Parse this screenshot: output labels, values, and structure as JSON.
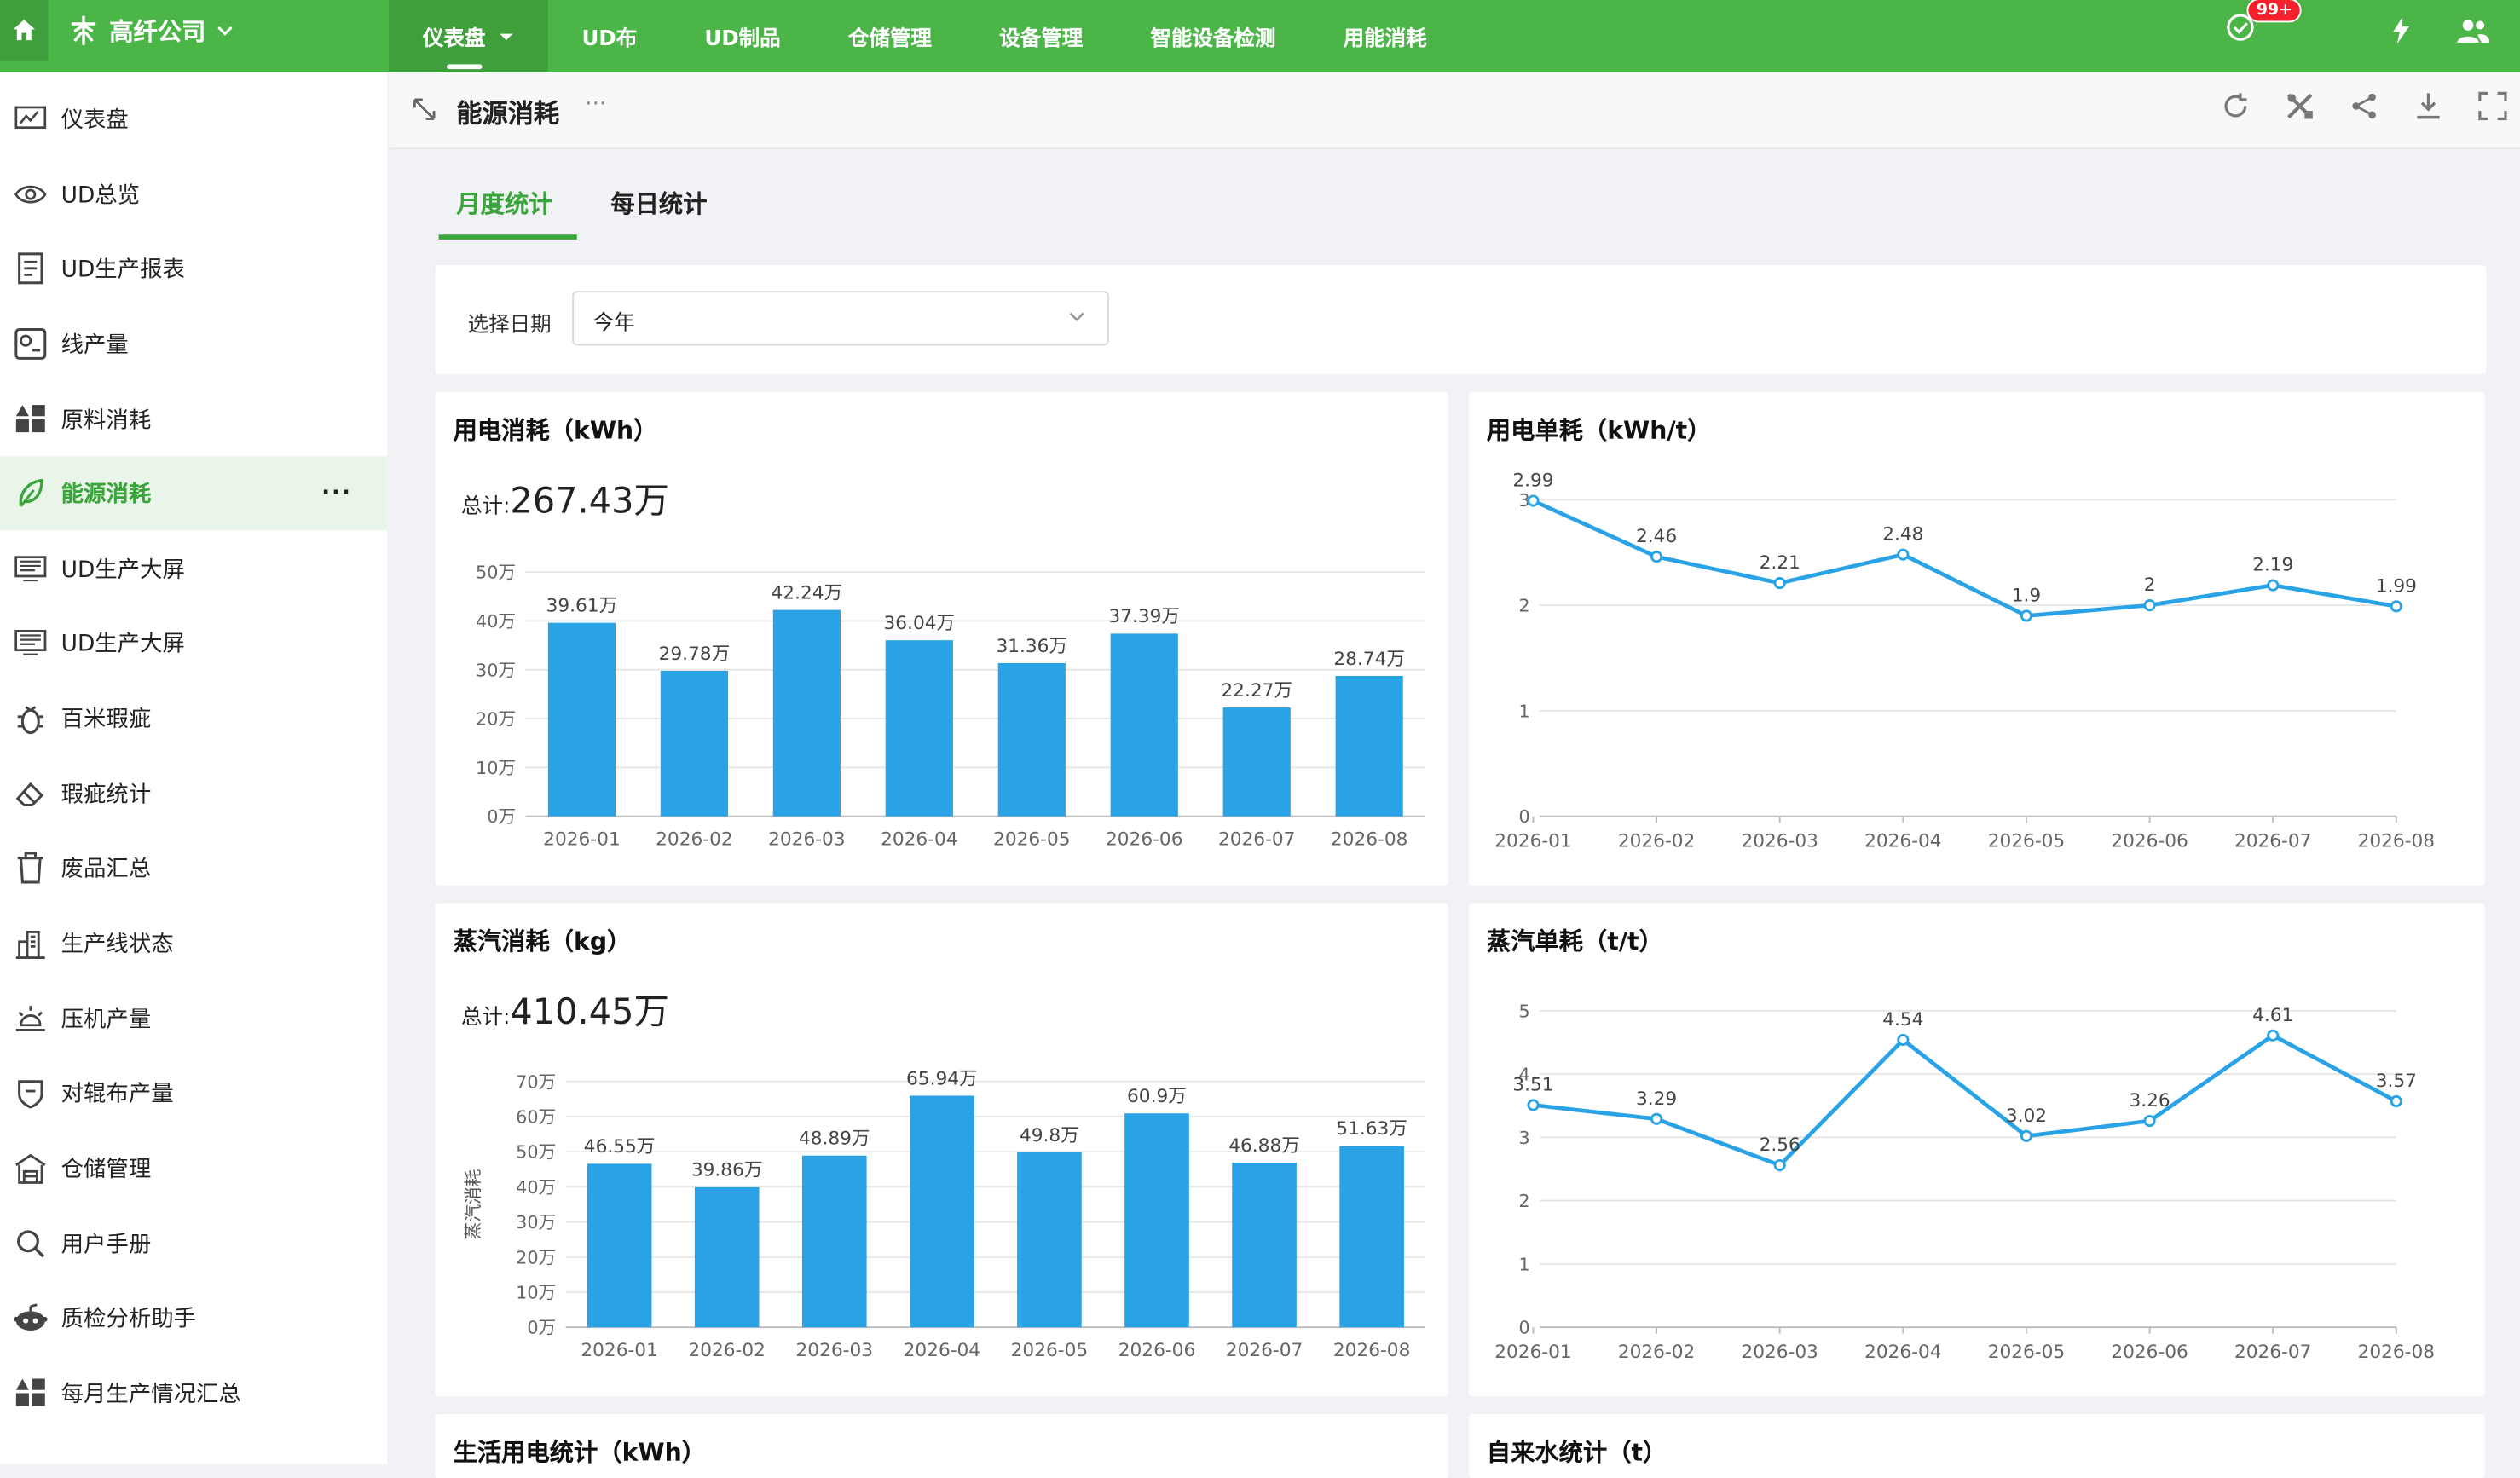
{
  "topbar": {
    "company": "高纤公司",
    "nav": [
      "仪表盘",
      "UD布",
      "UD制品",
      "仓储管理",
      "设备管理",
      "智能设备检测",
      "用能消耗"
    ],
    "badge": "99+"
  },
  "sidebar": {
    "items": [
      "仪表盘",
      "UD总览",
      "UD生产报表",
      "线产量",
      "原料消耗",
      "能源消耗",
      "UD生产大屏",
      "UD生产大屏",
      "百米瑕疵",
      "瑕疵统计",
      "废品汇总",
      "生产线状态",
      "压机产量",
      "对辊布产量",
      "仓储管理",
      "用户手册",
      "质检分析助手",
      "每月生产情况汇总"
    ],
    "active_index": 5,
    "more": "···"
  },
  "page": {
    "title": "能源消耗",
    "dots": "···",
    "tabs": [
      "月度统计",
      "每日统计"
    ],
    "filter_label": "选择日期",
    "filter_value": "今年"
  },
  "cards": {
    "electric": {
      "title": "用电消耗（kWh）",
      "total_label": "总计:",
      "total": "267.43万"
    },
    "electric_unit": {
      "title": "用电单耗（kWh/t）"
    },
    "steam": {
      "title": "蒸汽消耗（kg）",
      "total_label": "总计:",
      "total": "410.45万"
    },
    "steam_unit": {
      "title": "蒸汽单耗（t/t）"
    },
    "life_power": {
      "title": "生活用电统计（kWh）"
    },
    "water": {
      "title": "自来水统计（t）"
    }
  },
  "chart_data": [
    {
      "type": "bar",
      "title": "用电消耗（kWh）",
      "categories": [
        "2026-01",
        "2026-02",
        "2026-03",
        "2026-04",
        "2026-05",
        "2026-06",
        "2026-07",
        "2026-08"
      ],
      "values": [
        39.61,
        29.78,
        42.24,
        36.04,
        31.36,
        37.39,
        22.27,
        28.74
      ],
      "data_labels": [
        "39.61万",
        "29.78万",
        "42.24万",
        "36.04万",
        "31.36万",
        "37.39万",
        "22.27万",
        "28.74万"
      ],
      "yticks": [
        "0万",
        "10万",
        "20万",
        "30万",
        "40万",
        "50万"
      ],
      "ylim": [
        0,
        50
      ],
      "grid": true,
      "color": "#29a3e6"
    },
    {
      "type": "line",
      "title": "用电单耗（kWh/t）",
      "categories": [
        "2026-01",
        "2026-02",
        "2026-03",
        "2026-04",
        "2026-05",
        "2026-06",
        "2026-07",
        "2026-08"
      ],
      "values": [
        2.99,
        2.46,
        2.21,
        2.48,
        1.9,
        2,
        2.19,
        1.99
      ],
      "data_labels": [
        "2.99",
        "2.46",
        "2.21",
        "2.48",
        "1.9",
        "2",
        "2.19",
        "1.99"
      ],
      "yticks": [
        "0",
        "1",
        "2",
        "3"
      ],
      "ylim": [
        0,
        3
      ],
      "grid": true,
      "color": "#29a3e6"
    },
    {
      "type": "bar",
      "title": "蒸汽消耗（kg）",
      "ylabel": "蒸汽消耗",
      "categories": [
        "2026-01",
        "2026-02",
        "2026-03",
        "2026-04",
        "2026-05",
        "2026-06",
        "2026-07",
        "2026-08"
      ],
      "values": [
        46.55,
        39.86,
        48.89,
        65.94,
        49.8,
        60.9,
        46.88,
        51.63
      ],
      "data_labels": [
        "46.55万",
        "39.86万",
        "48.89万",
        "65.94万",
        "49.8万",
        "60.9万",
        "46.88万",
        "51.63万"
      ],
      "yticks": [
        "0万",
        "10万",
        "20万",
        "30万",
        "40万",
        "50万",
        "60万",
        "70万"
      ],
      "ylim": [
        0,
        70
      ],
      "grid": true,
      "color": "#29a3e6"
    },
    {
      "type": "line",
      "title": "蒸汽单耗（t/t）",
      "categories": [
        "2026-01",
        "2026-02",
        "2026-03",
        "2026-04",
        "2026-05",
        "2026-06",
        "2026-07",
        "2026-08"
      ],
      "values": [
        3.51,
        3.29,
        2.56,
        4.54,
        3.02,
        3.26,
        4.61,
        3.57
      ],
      "data_labels": [
        "3.51",
        "3.29",
        "2.56",
        "4.54",
        "3.02",
        "3.26",
        "4.61",
        "3.57"
      ],
      "yticks": [
        "0",
        "1",
        "2",
        "3",
        "4",
        "5"
      ],
      "ylim": [
        0,
        5
      ],
      "grid": true,
      "color": "#29a3e6"
    }
  ]
}
